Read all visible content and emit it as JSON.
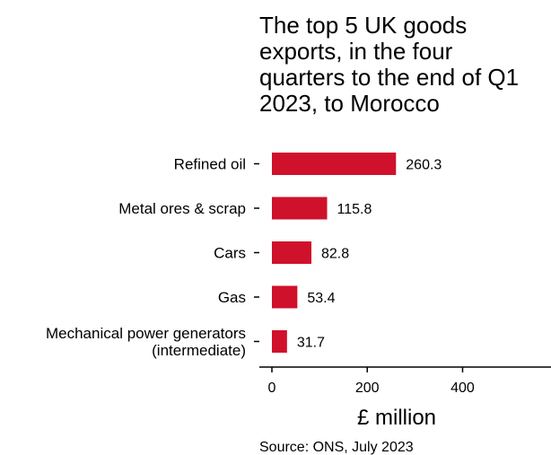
{
  "chart_data": {
    "type": "bar",
    "orientation": "horizontal",
    "title_lines": [
      "The top 5 UK goods",
      "exports, in the four",
      "quarters to the end of Q1",
      "2023, to Morocco"
    ],
    "categories": [
      [
        "Refined oil"
      ],
      [
        "Metal ores & scrap"
      ],
      [
        "Cars"
      ],
      [
        "Gas"
      ],
      [
        "Mechanical power generators",
        "(intermediate)"
      ]
    ],
    "values": [
      260.3,
      115.8,
      82.8,
      53.4,
      31.7
    ],
    "value_labels": [
      "260.3",
      "115.8",
      "82.8",
      "53.4",
      "31.7"
    ],
    "xlabel": "£ million",
    "xlim": [
      0,
      560
    ],
    "xticks": [
      0,
      200,
      400
    ],
    "bar_color": "#d0112b",
    "grid": false,
    "legend": "none",
    "source": "Source: ONS, July 2023"
  }
}
